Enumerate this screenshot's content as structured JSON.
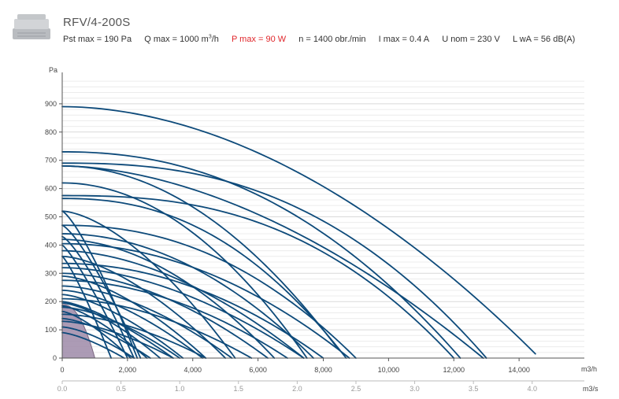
{
  "header": {
    "title": "RFV/4-200S",
    "specs": {
      "pst": "Pst max = 190 Pa",
      "q_prefix": "Q max = 1000 m",
      "q_sup": "3",
      "q_suffix": "/h",
      "p": "P max = 90 W",
      "n": "n = 1400 obr./min",
      "i": "I max = 0.4 A",
      "u": "U nom = 230 V",
      "l": "L wA = 56 dB(A)"
    },
    "colors": {
      "highlight": "#e0262b",
      "curve": "#0d4a7a",
      "area_fill": "#9e8aa8"
    }
  },
  "chart_data": {
    "type": "line",
    "ylabel": "Pa",
    "xlabel": "m3/h",
    "x2label": "m3/s",
    "ylim": [
      0,
      1000
    ],
    "xlim": [
      0,
      16000
    ],
    "x2lim": [
      0,
      4.444
    ],
    "yticks": [
      0,
      100,
      200,
      300,
      400,
      500,
      600,
      700,
      800,
      900
    ],
    "ytick_labels": [
      "0",
      "100",
      "200",
      "300",
      "400",
      "500",
      "600",
      "700",
      "800",
      "900"
    ],
    "xticks": [
      0,
      2000,
      4000,
      6000,
      8000,
      10000,
      12000,
      14000
    ],
    "xtick_labels": [
      "0",
      "2,000",
      "4,000",
      "6,000",
      "8,000",
      "10,000",
      "12,000",
      "14,000"
    ],
    "x2ticks": [
      0,
      0.5,
      1.0,
      1.5,
      2.0,
      2.5,
      3.0,
      3.5,
      4.0
    ],
    "x2tick_labels": [
      "0.0",
      "0.5",
      "1.0",
      "1.5",
      "2.0",
      "2.5",
      "3.0",
      "3.5",
      "4.0"
    ],
    "grid": true,
    "highlight_area": {
      "name": "RFV/4-200S",
      "pmax": 190,
      "qmax": 1000
    },
    "series": [
      {
        "p0": 890,
        "q1": 14500,
        "p1": 15,
        "k": 1.9
      },
      {
        "p0": 730,
        "q1": 12200,
        "p1": 0,
        "k": 2.2
      },
      {
        "p0": 690,
        "q1": 13000,
        "p1": 0,
        "k": 2.5
      },
      {
        "p0": 680,
        "q1": 12900,
        "p1": 0,
        "k": 1.8
      },
      {
        "p0": 680,
        "q1": 8400,
        "p1": 40,
        "k": 2.0
      },
      {
        "p0": 620,
        "q1": 7500,
        "p1": 0,
        "k": 2.0
      },
      {
        "p0": 575,
        "q1": 12000,
        "p1": 0,
        "k": 2.6
      },
      {
        "p0": 565,
        "q1": 8700,
        "p1": 0,
        "k": 2.3
      },
      {
        "p0": 520,
        "q1": 5300,
        "p1": 0,
        "k": 1.6
      },
      {
        "p0": 470,
        "q1": 9000,
        "p1": 0,
        "k": 2.2
      },
      {
        "p0": 440,
        "q1": 7700,
        "p1": 0,
        "k": 2.0
      },
      {
        "p0": 420,
        "q1": 6500,
        "p1": 0,
        "k": 1.9
      },
      {
        "p0": 405,
        "q1": 8800,
        "p1": 0,
        "k": 2.0
      },
      {
        "p0": 380,
        "q1": 7400,
        "p1": 0,
        "k": 1.8
      },
      {
        "p0": 360,
        "q1": 5000,
        "p1": 0,
        "k": 1.6
      },
      {
        "p0": 335,
        "q1": 8000,
        "p1": 0,
        "k": 2.0
      },
      {
        "p0": 320,
        "q1": 7400,
        "p1": 0,
        "k": 1.8
      },
      {
        "p0": 300,
        "q1": 6300,
        "p1": 0,
        "k": 1.8
      },
      {
        "p0": 290,
        "q1": 4400,
        "p1": 0,
        "k": 1.6
      },
      {
        "p0": 275,
        "q1": 6900,
        "p1": 0,
        "k": 1.9
      },
      {
        "p0": 255,
        "q1": 5200,
        "p1": 0,
        "k": 1.7
      },
      {
        "p0": 240,
        "q1": 4300,
        "p1": 0,
        "k": 1.6
      },
      {
        "p0": 225,
        "q1": 3700,
        "p1": 0,
        "k": 1.5
      },
      {
        "p0": 210,
        "q1": 5800,
        "p1": 0,
        "k": 1.8
      },
      {
        "p0": 200,
        "q1": 3400,
        "p1": 0,
        "k": 1.4
      },
      {
        "p0": 195,
        "q1": 3000,
        "p1": 0,
        "k": 1.5
      },
      {
        "p0": 185,
        "q1": 2600,
        "p1": 0,
        "k": 1.4
      },
      {
        "p0": 180,
        "q1": 3600,
        "p1": 0,
        "k": 1.6
      },
      {
        "p0": 165,
        "q1": 2100,
        "p1": 0,
        "k": 1.4
      },
      {
        "p0": 155,
        "q1": 4400,
        "p1": 0,
        "k": 1.7
      },
      {
        "p0": 140,
        "q1": 2700,
        "p1": 0,
        "k": 1.5
      },
      {
        "p0": 130,
        "q1": 3400,
        "p1": 0,
        "k": 1.6
      },
      {
        "p0": 110,
        "q1": 2200,
        "p1": 0,
        "k": 1.5
      },
      {
        "p0": 90,
        "q1": 1900,
        "p1": 0,
        "k": 1.4
      },
      {
        "p0": 520,
        "q1": 2300,
        "p1": 0,
        "k": 1.3
      },
      {
        "p0": 470,
        "q1": 2400,
        "p1": 0,
        "k": 1.3
      },
      {
        "p0": 430,
        "q1": 2200,
        "p1": 0,
        "k": 1.3
      },
      {
        "p0": 400,
        "q1": 2000,
        "p1": 0,
        "k": 1.2
      },
      {
        "p0": 360,
        "q1": 1500,
        "p1": 0,
        "k": 1.2
      }
    ]
  }
}
